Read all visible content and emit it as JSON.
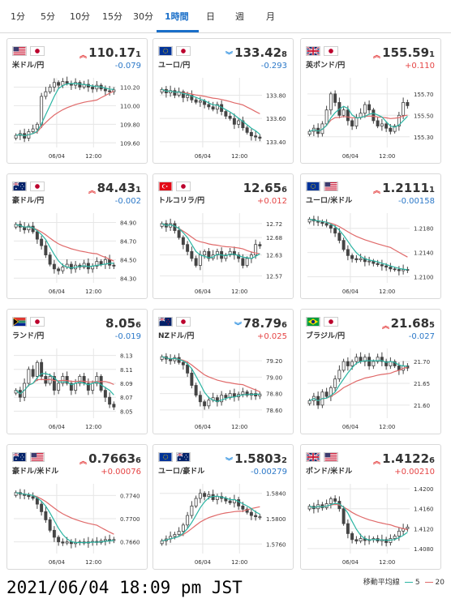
{
  "tabs": [
    {
      "label": "1分",
      "active": false
    },
    {
      "label": "5分",
      "active": false
    },
    {
      "label": "10分",
      "active": false
    },
    {
      "label": "15分",
      "active": false
    },
    {
      "label": "30分",
      "active": false
    },
    {
      "label": "1時間",
      "active": true
    },
    {
      "label": "日",
      "active": false
    },
    {
      "label": "週",
      "active": false
    },
    {
      "label": "月",
      "active": false
    }
  ],
  "colors": {
    "candle": "#444444",
    "ma5": "#2bb5a3",
    "ma20": "#e06a6a",
    "grid": "#e6e6e6",
    "up_arrow": "#e54545",
    "down_arrow": "#2b8fe0"
  },
  "cards": [
    {
      "name": "米ドル/円",
      "flags": [
        "us",
        "jp"
      ],
      "price_main": "110.17",
      "price_last": "1",
      "direction": "up",
      "change": "-0.079",
      "yticks": [
        "110.20",
        "110.00",
        "109.80",
        "109.60"
      ],
      "xticks": [
        "06/04",
        "12:00"
      ],
      "chart_data": {
        "type": "candlestick",
        "x_labels": [
          "06/04",
          "12:00"
        ],
        "yticks": [
          110.2,
          110.0,
          109.8,
          109.6
        ],
        "ylim": [
          109.55,
          110.3
        ],
        "close_path": [
          109.68,
          109.7,
          109.65,
          109.72,
          109.75,
          109.8,
          110.1,
          110.15,
          110.2,
          110.25,
          110.22,
          110.26,
          110.24,
          110.22,
          110.25,
          110.2,
          110.23,
          110.2,
          110.18,
          110.22,
          110.18,
          110.16,
          110.15,
          110.17
        ]
      }
    },
    {
      "name": "ユーロ/円",
      "flags": [
        "eu",
        "jp"
      ],
      "price_main": "133.42",
      "price_last": "8",
      "direction": "down",
      "change": "-0.293",
      "yticks": [
        "133.80",
        "133.60",
        "133.40"
      ],
      "xticks": [
        "06/04",
        "12:00"
      ],
      "chart_data": {
        "type": "candlestick",
        "x_labels": [
          "06/04",
          "12:00"
        ],
        "yticks": [
          133.8,
          133.6,
          133.4
        ],
        "ylim": [
          133.35,
          133.95
        ],
        "close_path": [
          133.85,
          133.82,
          133.84,
          133.8,
          133.83,
          133.78,
          133.8,
          133.76,
          133.74,
          133.75,
          133.72,
          133.7,
          133.68,
          133.72,
          133.66,
          133.62,
          133.6,
          133.55,
          133.58,
          133.52,
          133.48,
          133.45,
          133.44,
          133.43
        ]
      }
    },
    {
      "name": "英ポンド/円",
      "flags": [
        "gb",
        "jp"
      ],
      "price_main": "155.59",
      "price_last": "1",
      "direction": "up",
      "change": "+0.110",
      "yticks": [
        "155.70",
        "155.50",
        "155.30"
      ],
      "xticks": [
        "06/04",
        "12:00"
      ],
      "chart_data": {
        "type": "candlestick",
        "x_labels": [
          "06/04",
          "12:00"
        ],
        "yticks": [
          155.7,
          155.5,
          155.3
        ],
        "ylim": [
          155.2,
          155.85
        ],
        "close_path": [
          155.35,
          155.38,
          155.33,
          155.42,
          155.55,
          155.7,
          155.62,
          155.5,
          155.55,
          155.45,
          155.4,
          155.48,
          155.52,
          155.6,
          155.55,
          155.45,
          155.4,
          155.42,
          155.38,
          155.35,
          155.4,
          155.5,
          155.62,
          155.59
        ]
      }
    },
    {
      "name": "豪ドル/円",
      "flags": [
        "au",
        "jp"
      ],
      "price_main": "84.43",
      "price_last": "1",
      "direction": "up",
      "change": "-0.002",
      "yticks": [
        "84.90",
        "84.70",
        "84.50",
        "84.30"
      ],
      "xticks": [
        "06/04",
        "12:00"
      ],
      "chart_data": {
        "type": "candlestick",
        "x_labels": [
          "06/04",
          "12:00"
        ],
        "yticks": [
          84.9,
          84.7,
          84.5,
          84.3
        ],
        "ylim": [
          84.25,
          85.0
        ],
        "close_path": [
          84.88,
          84.85,
          84.82,
          84.86,
          84.8,
          84.72,
          84.65,
          84.55,
          84.45,
          84.4,
          84.38,
          84.42,
          84.45,
          84.4,
          84.44,
          84.42,
          84.46,
          84.4,
          84.43,
          84.48,
          84.45,
          84.5,
          84.44,
          84.43
        ]
      }
    },
    {
      "name": "トルコリラ/円",
      "flags": [
        "tr",
        "jp"
      ],
      "price_main": "12.65",
      "price_last": "6",
      "direction": "none",
      "change": "+0.012",
      "yticks": [
        "12.72",
        "12.68",
        "12.63",
        "12.57"
      ],
      "xticks": [
        "06/04",
        "12:00"
      ],
      "chart_data": {
        "type": "candlestick",
        "x_labels": [
          "06/04",
          "12:00"
        ],
        "yticks": [
          12.72,
          12.68,
          12.63,
          12.57
        ],
        "ylim": [
          12.55,
          12.75
        ],
        "close_path": [
          12.72,
          12.71,
          12.72,
          12.7,
          12.68,
          12.66,
          12.64,
          12.62,
          12.6,
          12.63,
          12.64,
          12.62,
          12.63,
          12.64,
          12.62,
          12.63,
          12.64,
          12.63,
          12.62,
          12.6,
          12.62,
          12.63,
          12.66,
          12.656
        ]
      }
    },
    {
      "name": "ユーロ/米ドル",
      "flags": [
        "eu",
        "us"
      ],
      "price_main": "1.2111",
      "price_last": "1",
      "direction": "up",
      "change": "-0.00158",
      "yticks": [
        "1.2180",
        "1.2140",
        "1.2100"
      ],
      "xticks": [
        "06/04",
        "12:00"
      ],
      "chart_data": {
        "type": "candlestick",
        "x_labels": [
          "06/04",
          "12:00"
        ],
        "yticks": [
          1.218,
          1.214,
          1.21
        ],
        "ylim": [
          1.209,
          1.2205
        ],
        "close_path": [
          1.2195,
          1.2192,
          1.219,
          1.2188,
          1.2185,
          1.218,
          1.2172,
          1.216,
          1.2145,
          1.2135,
          1.213,
          1.2128,
          1.213,
          1.2125,
          1.2126,
          1.2122,
          1.212,
          1.2118,
          1.2116,
          1.2113,
          1.2112,
          1.211,
          1.2112,
          1.2111
        ]
      }
    },
    {
      "name": "ランド/円",
      "flags": [
        "za",
        "jp"
      ],
      "price_main": "8.05",
      "price_last": "6",
      "direction": "none",
      "change": "-0.019",
      "yticks": [
        "8.13",
        "8.11",
        "8.09",
        "8.07",
        "8.05"
      ],
      "xticks": [
        "06/04",
        "12:00"
      ],
      "chart_data": {
        "type": "candlestick",
        "x_labels": [
          "06/04",
          "12:00"
        ],
        "yticks": [
          8.13,
          8.11,
          8.09,
          8.07,
          8.05
        ],
        "ylim": [
          8.04,
          8.14
        ],
        "close_path": [
          8.08,
          8.07,
          8.09,
          8.11,
          8.1,
          8.12,
          8.1,
          8.09,
          8.1,
          8.08,
          8.09,
          8.1,
          8.09,
          8.08,
          8.09,
          8.1,
          8.09,
          8.08,
          8.09,
          8.1,
          8.08,
          8.07,
          8.06,
          8.056
        ]
      }
    },
    {
      "name": "NZドル/円",
      "flags": [
        "nz",
        "jp"
      ],
      "price_main": "78.79",
      "price_last": "6",
      "direction": "down",
      "change": "+0.025",
      "yticks": [
        "79.20",
        "79.00",
        "78.80",
        "78.60"
      ],
      "xticks": [
        "06/04",
        "12:00"
      ],
      "chart_data": {
        "type": "candlestick",
        "x_labels": [
          "06/04",
          "12:00"
        ],
        "yticks": [
          79.2,
          79.0,
          78.8,
          78.6
        ],
        "ylim": [
          78.5,
          79.35
        ],
        "close_path": [
          79.25,
          79.22,
          79.2,
          79.24,
          79.18,
          79.15,
          79.05,
          78.9,
          78.78,
          78.7,
          78.65,
          78.72,
          78.75,
          78.7,
          78.78,
          78.75,
          78.8,
          78.76,
          78.79,
          78.82,
          78.78,
          78.8,
          78.77,
          78.79
        ]
      }
    },
    {
      "name": "ブラジル/円",
      "flags": [
        "br",
        "jp"
      ],
      "price_main": "21.68",
      "price_last": "5",
      "direction": "up",
      "change": "-0.027",
      "yticks": [
        "21.70",
        "21.65",
        "21.60"
      ],
      "xticks": [
        "06/04",
        "12:00"
      ],
      "chart_data": {
        "type": "candlestick",
        "x_labels": [
          "06/04",
          "12:00"
        ],
        "yticks": [
          21.7,
          21.65,
          21.6
        ],
        "ylim": [
          21.57,
          21.73
        ],
        "close_path": [
          21.61,
          21.62,
          21.6,
          21.63,
          21.62,
          21.64,
          21.66,
          21.68,
          21.7,
          21.69,
          21.7,
          21.71,
          21.7,
          21.71,
          21.69,
          21.7,
          21.71,
          21.7,
          21.69,
          21.7,
          21.69,
          21.68,
          21.69,
          21.685
        ]
      }
    },
    {
      "name": "豪ドル/米ドル",
      "flags": [
        "au",
        "us"
      ],
      "price_main": "0.7663",
      "price_last": "6",
      "direction": "up",
      "change": "+0.00076",
      "yticks": [
        "0.7740",
        "0.7700",
        "0.7660"
      ],
      "xticks": [
        "06/04",
        "12:00"
      ],
      "chart_data": {
        "type": "candlestick",
        "x_labels": [
          "06/04",
          "12:00"
        ],
        "yticks": [
          0.774,
          0.77,
          0.766
        ],
        "ylim": [
          0.764,
          0.776
        ],
        "close_path": [
          0.7745,
          0.7742,
          0.774,
          0.7738,
          0.7735,
          0.7725,
          0.7712,
          0.7698,
          0.768,
          0.7668,
          0.766,
          0.7658,
          0.766,
          0.7657,
          0.7659,
          0.766,
          0.7658,
          0.766,
          0.7661,
          0.7659,
          0.7662,
          0.7664,
          0.7663,
          0.7664
        ]
      }
    },
    {
      "name": "ユーロ/豪ドル",
      "flags": [
        "eu",
        "au"
      ],
      "price_main": "1.5803",
      "price_last": "2",
      "direction": "down",
      "change": "-0.00279",
      "yticks": [
        "1.5840",
        "1.5800",
        "1.5760"
      ],
      "xticks": [
        "06/04",
        "12:00"
      ],
      "chart_data": {
        "type": "candlestick",
        "x_labels": [
          "06/04",
          "12:00"
        ],
        "yticks": [
          1.584,
          1.58,
          1.576
        ],
        "ylim": [
          1.5745,
          1.5855
        ],
        "close_path": [
          1.5765,
          1.5768,
          1.5772,
          1.5775,
          1.578,
          1.579,
          1.5805,
          1.582,
          1.5832,
          1.584,
          1.5835,
          1.5838,
          1.583,
          1.5835,
          1.5832,
          1.5828,
          1.5825,
          1.583,
          1.582,
          1.5815,
          1.581,
          1.5805,
          1.5803,
          1.5803
        ]
      }
    },
    {
      "name": "ポンド/米ドル",
      "flags": [
        "gb",
        "us"
      ],
      "price_main": "1.4122",
      "price_last": "6",
      "direction": "up",
      "change": "+0.00210",
      "yticks": [
        "1.4200",
        "1.4160",
        "1.4120",
        "1.4080"
      ],
      "xticks": [
        "06/04",
        "12:00"
      ],
      "chart_data": {
        "type": "candlestick",
        "x_labels": [
          "06/04",
          "12:00"
        ],
        "yticks": [
          1.42,
          1.416,
          1.412,
          1.408
        ],
        "ylim": [
          1.407,
          1.421
        ],
        "close_path": [
          1.4165,
          1.416,
          1.4168,
          1.4162,
          1.417,
          1.418,
          1.4175,
          1.416,
          1.413,
          1.411,
          1.4098,
          1.4095,
          1.41,
          1.4096,
          1.4098,
          1.41,
          1.4095,
          1.4098,
          1.4092,
          1.41,
          1.4105,
          1.4115,
          1.412,
          1.4123
        ]
      }
    }
  ],
  "footer": {
    "timestamp": "2021/06/04 18:09 pm JST",
    "legend_label": "移動平均線",
    "ma_short": "5",
    "ma_long": "20"
  }
}
